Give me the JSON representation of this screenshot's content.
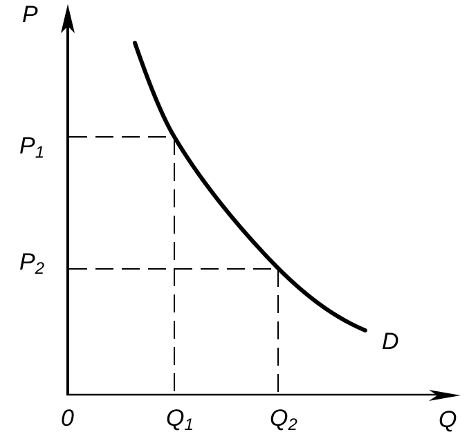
{
  "axes": {
    "y_label": "P",
    "x_label": "Q",
    "origin": "0"
  },
  "price_levels": [
    {
      "symbol": "P",
      "subscript": "1"
    },
    {
      "symbol": "P",
      "subscript": "2"
    }
  ],
  "quantity_levels": [
    {
      "symbol": "Q",
      "subscript": "1"
    },
    {
      "symbol": "Q",
      "subscript": "2"
    }
  ],
  "curve": {
    "label": "D"
  }
}
